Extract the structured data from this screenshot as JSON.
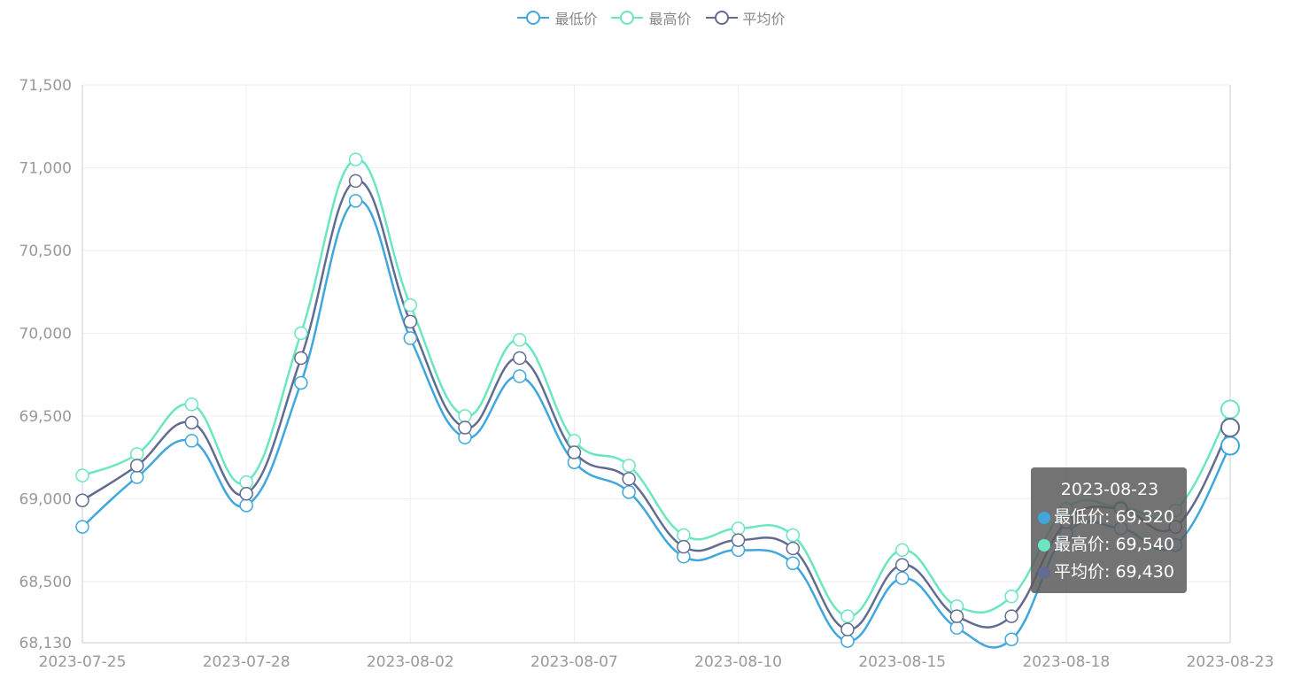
{
  "legend": [
    {
      "name": "最低价",
      "color": "#3fa7dc"
    },
    {
      "name": "最高价",
      "color": "#6be6c1"
    },
    {
      "name": "平均价",
      "color": "#626c91"
    }
  ],
  "tooltip": {
    "title": "2023-08-23",
    "rows": [
      {
        "label": "最低价: 69,320",
        "color": "#3fa7dc"
      },
      {
        "label": "最高价: 69,540",
        "color": "#6be6c1"
      },
      {
        "label": "平均价: 69,430",
        "color": "#626c91"
      }
    ]
  },
  "chart_data": {
    "type": "line",
    "x": [
      "2023-07-25",
      "2023-07-26",
      "2023-07-27",
      "2023-07-28",
      "2023-07-31",
      "2023-08-01",
      "2023-08-02",
      "2023-08-03",
      "2023-08-04",
      "2023-08-07",
      "2023-08-08",
      "2023-08-09",
      "2023-08-10",
      "2023-08-11",
      "2023-08-14",
      "2023-08-15",
      "2023-08-16",
      "2023-08-17",
      "2023-08-18",
      "2023-08-21",
      "2023-08-22",
      "2023-08-23"
    ],
    "x_tick_labels": [
      "2023-07-25",
      "2023-07-28",
      "2023-08-02",
      "2023-08-07",
      "2023-08-10",
      "2023-08-15",
      "2023-08-18",
      "2023-08-23"
    ],
    "series": [
      {
        "name": "最低价",
        "color": "#3fa7dc",
        "values": [
          68830,
          69130,
          69350,
          68960,
          69700,
          70800,
          69970,
          69370,
          69740,
          69220,
          69040,
          68650,
          68690,
          68610,
          68140,
          68520,
          68220,
          68150,
          68790,
          68820,
          68720,
          69320
        ]
      },
      {
        "name": "最高价",
        "color": "#6be6c1",
        "values": [
          69140,
          69270,
          69570,
          69100,
          70000,
          71050,
          70170,
          69500,
          69960,
          69350,
          69200,
          68780,
          68820,
          68780,
          68290,
          68690,
          68350,
          68410,
          68940,
          68950,
          68930,
          69540
        ]
      },
      {
        "name": "平均价",
        "color": "#626c91",
        "values": [
          68990,
          69200,
          69460,
          69030,
          69850,
          70920,
          70070,
          69430,
          69850,
          69280,
          69120,
          68710,
          68750,
          68700,
          68210,
          68600,
          68290,
          68290,
          68860,
          68940,
          68830,
          69430
        ]
      }
    ],
    "yticks": [
      "68,130",
      "68,500",
      "69,000",
      "69,500",
      "70,000",
      "70,500",
      "71,000",
      "71,500"
    ],
    "ylim": [
      68130,
      71500
    ],
    "grid": true,
    "legend_position": "top-center"
  }
}
